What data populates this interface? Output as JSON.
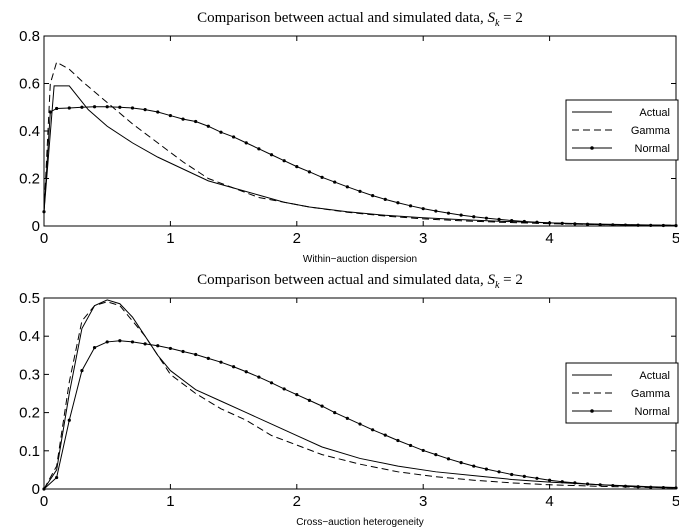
{
  "chart_data": [
    {
      "type": "line",
      "title_prefix": "Comparison between actual and simulated data, ",
      "title_math": "S",
      "title_sub": "k",
      "title_suffix": " = 2",
      "xlabel": "Within−auction dispersion",
      "ylabel": "",
      "xlim": [
        0,
        5
      ],
      "ylim": [
        0,
        0.8
      ],
      "xticks": [
        0,
        1,
        2,
        3,
        4,
        5
      ],
      "yticks": [
        0,
        0.2,
        0.4,
        0.6,
        0.8
      ],
      "xtick_labels": [
        "0",
        "1",
        "2",
        "3",
        "4",
        "5"
      ],
      "ytick_labels": [
        "0",
        "0.2",
        "0.4",
        "0.6",
        "0.8"
      ],
      "legend_position": "right",
      "series": [
        {
          "name": "Actual",
          "style": "solid",
          "x": [
            0,
            0.08,
            0.2,
            0.35,
            0.5,
            0.7,
            0.9,
            1.1,
            1.3,
            1.5,
            1.7,
            1.9,
            2.1,
            2.4,
            2.7,
            3.0,
            3.3,
            3.6,
            4.0,
            4.4,
            4.8,
            5.0
          ],
          "y": [
            0.06,
            0.59,
            0.59,
            0.49,
            0.42,
            0.35,
            0.29,
            0.24,
            0.19,
            0.16,
            0.13,
            0.1,
            0.08,
            0.06,
            0.045,
            0.035,
            0.027,
            0.02,
            0.013,
            0.008,
            0.004,
            0.003
          ]
        },
        {
          "name": "Gamma",
          "style": "dashed",
          "x": [
            0,
            0.05,
            0.1,
            0.2,
            0.3,
            0.5,
            0.7,
            0.9,
            1.1,
            1.3,
            1.5,
            1.7,
            1.9,
            2.1,
            2.4,
            2.7,
            3.0,
            3.3,
            3.6,
            4.0,
            4.4,
            4.8,
            5.0
          ],
          "y": [
            0.06,
            0.6,
            0.69,
            0.66,
            0.61,
            0.52,
            0.43,
            0.35,
            0.27,
            0.2,
            0.16,
            0.12,
            0.1,
            0.08,
            0.058,
            0.042,
            0.03,
            0.022,
            0.016,
            0.01,
            0.006,
            0.004,
            0.003
          ]
        },
        {
          "name": "Normal",
          "style": "dotted-line",
          "x": [
            0,
            0.05,
            0.1,
            0.2,
            0.3,
            0.4,
            0.5,
            0.6,
            0.7,
            0.8,
            0.9,
            1.0,
            1.1,
            1.2,
            1.3,
            1.4,
            1.5,
            1.6,
            1.7,
            1.8,
            1.9,
            2.0,
            2.1,
            2.2,
            2.3,
            2.4,
            2.5,
            2.6,
            2.7,
            2.8,
            2.9,
            3.0,
            3.1,
            3.2,
            3.3,
            3.4,
            3.5,
            3.6,
            3.7,
            3.8,
            3.9,
            4.0,
            4.1,
            4.2,
            4.3,
            4.4,
            4.5,
            4.6,
            4.7,
            4.8,
            4.9,
            5.0
          ],
          "y": [
            0.06,
            0.48,
            0.495,
            0.497,
            0.5,
            0.502,
            0.502,
            0.5,
            0.497,
            0.49,
            0.48,
            0.465,
            0.45,
            0.44,
            0.42,
            0.395,
            0.375,
            0.35,
            0.325,
            0.3,
            0.275,
            0.25,
            0.228,
            0.205,
            0.185,
            0.165,
            0.146,
            0.128,
            0.112,
            0.098,
            0.085,
            0.073,
            0.063,
            0.054,
            0.046,
            0.039,
            0.033,
            0.028,
            0.023,
            0.019,
            0.016,
            0.013,
            0.011,
            0.009,
            0.0075,
            0.006,
            0.005,
            0.004,
            0.0032,
            0.0025,
            0.002,
            0.0016
          ]
        }
      ]
    },
    {
      "type": "line",
      "title_prefix": "Comparison between actual and simulated data, ",
      "title_math": "S",
      "title_sub": "k",
      "title_suffix": " = 2",
      "xlabel": "Cross−auction heterogeneity",
      "ylabel": "",
      "xlim": [
        0,
        5
      ],
      "ylim": [
        0,
        0.5
      ],
      "xticks": [
        0,
        1,
        2,
        3,
        4,
        5
      ],
      "yticks": [
        0,
        0.1,
        0.2,
        0.3,
        0.4,
        0.5
      ],
      "xtick_labels": [
        "0",
        "1",
        "2",
        "3",
        "4",
        "5"
      ],
      "ytick_labels": [
        "0",
        "0.1",
        "0.2",
        "0.3",
        "0.4",
        "0.5"
      ],
      "legend_position": "right",
      "series": [
        {
          "name": "Actual",
          "style": "solid",
          "x": [
            0,
            0.1,
            0.2,
            0.3,
            0.4,
            0.5,
            0.6,
            0.7,
            0.8,
            0.9,
            1.0,
            1.2,
            1.4,
            1.6,
            1.8,
            2.0,
            2.2,
            2.5,
            2.8,
            3.1,
            3.4,
            3.7,
            4.0,
            4.4,
            4.8,
            5.0
          ],
          "y": [
            0,
            0.05,
            0.25,
            0.42,
            0.48,
            0.495,
            0.485,
            0.45,
            0.4,
            0.35,
            0.31,
            0.26,
            0.23,
            0.2,
            0.17,
            0.14,
            0.11,
            0.08,
            0.06,
            0.045,
            0.035,
            0.025,
            0.018,
            0.011,
            0.006,
            0.004
          ]
        },
        {
          "name": "Gamma",
          "style": "dashed",
          "x": [
            0,
            0.1,
            0.2,
            0.3,
            0.4,
            0.5,
            0.6,
            0.7,
            0.8,
            0.9,
            1.0,
            1.2,
            1.4,
            1.6,
            1.8,
            2.0,
            2.2,
            2.5,
            2.8,
            3.1,
            3.4,
            3.7,
            4.0,
            4.4,
            4.8,
            5.0
          ],
          "y": [
            0,
            0.06,
            0.28,
            0.44,
            0.48,
            0.49,
            0.48,
            0.44,
            0.4,
            0.35,
            0.3,
            0.25,
            0.21,
            0.18,
            0.14,
            0.115,
            0.09,
            0.065,
            0.045,
            0.032,
            0.023,
            0.016,
            0.011,
            0.007,
            0.004,
            0.003
          ]
        },
        {
          "name": "Normal",
          "style": "dotted-line",
          "x": [
            0,
            0.1,
            0.2,
            0.3,
            0.4,
            0.5,
            0.6,
            0.7,
            0.8,
            0.9,
            1.0,
            1.1,
            1.2,
            1.3,
            1.4,
            1.5,
            1.6,
            1.7,
            1.8,
            1.9,
            2.0,
            2.1,
            2.2,
            2.3,
            2.4,
            2.5,
            2.6,
            2.7,
            2.8,
            2.9,
            3.0,
            3.1,
            3.2,
            3.3,
            3.4,
            3.5,
            3.6,
            3.7,
            3.8,
            3.9,
            4.0,
            4.1,
            4.2,
            4.3,
            4.4,
            4.5,
            4.6,
            4.7,
            4.8,
            4.9,
            5.0
          ],
          "y": [
            0,
            0.03,
            0.18,
            0.31,
            0.37,
            0.385,
            0.388,
            0.385,
            0.38,
            0.375,
            0.368,
            0.36,
            0.352,
            0.342,
            0.332,
            0.32,
            0.307,
            0.293,
            0.278,
            0.262,
            0.247,
            0.232,
            0.217,
            0.2,
            0.185,
            0.17,
            0.155,
            0.141,
            0.127,
            0.114,
            0.101,
            0.09,
            0.079,
            0.069,
            0.06,
            0.052,
            0.045,
            0.038,
            0.033,
            0.028,
            0.023,
            0.019,
            0.016,
            0.013,
            0.011,
            0.009,
            0.0072,
            0.0058,
            0.0046,
            0.0036,
            0.0028
          ]
        }
      ]
    }
  ]
}
